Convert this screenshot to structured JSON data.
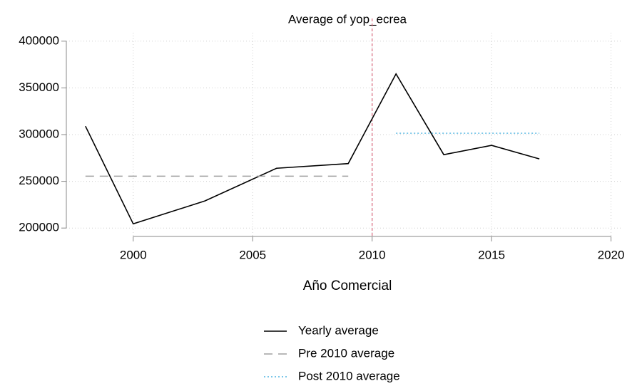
{
  "chart_data": {
    "type": "line",
    "title": "Average of yop_ecrea",
    "xlabel": "Año Comercial",
    "xlim": [
      1997.2,
      2020.4
    ],
    "ylim": [
      191000,
      409000
    ],
    "xticks": [
      2000,
      2005,
      2010,
      2015,
      2020
    ],
    "yticks": [
      200000,
      250000,
      300000,
      350000,
      400000
    ],
    "grid": true,
    "vline": {
      "x": 2010,
      "color": "#d9667a"
    },
    "legend": "bottom",
    "series": [
      {
        "name": "Yearly average",
        "color": "#000000",
        "dash": "solid",
        "x": [
          1998,
          2000,
          2003,
          2006,
          2009,
          2011,
          2013,
          2015,
          2017
        ],
        "values": [
          309000,
          204500,
          229000,
          264000,
          269000,
          365000,
          278500,
          288500,
          274000
        ]
      },
      {
        "name": "Pre 2010 average",
        "color": "#a0a0a0",
        "dash": "dashed",
        "x": [
          1998,
          2009
        ],
        "values": [
          255500,
          255500
        ]
      },
      {
        "name": "Post 2010 average",
        "color": "#4fb3e0",
        "dash": "dotted",
        "x": [
          2011,
          2017
        ],
        "values": [
          301500,
          301500
        ]
      }
    ]
  }
}
